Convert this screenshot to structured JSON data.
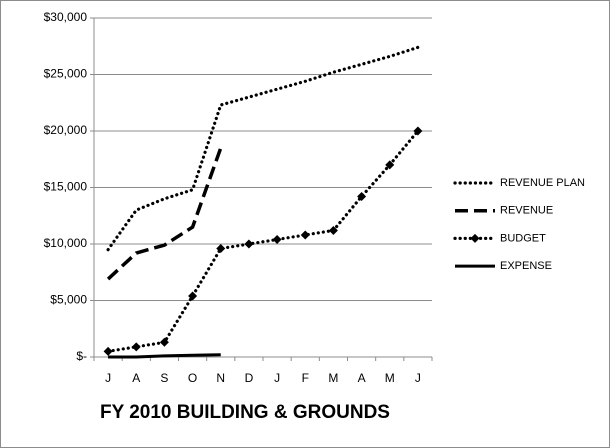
{
  "chart_data": {
    "type": "line",
    "title": "FY 2010 BUILDING & GROUNDS",
    "categories": [
      "J",
      "A",
      "S",
      "O",
      "N",
      "D",
      "J",
      "F",
      "M",
      "A",
      "M",
      "J"
    ],
    "series": [
      {
        "name": "REVENUE PLAN",
        "color": "#000000",
        "line_style": "dotted",
        "marker": "none",
        "values": [
          9500,
          13000,
          14000,
          14800,
          22300,
          23000,
          23700,
          24400,
          25200,
          25900,
          26600,
          27400
        ]
      },
      {
        "name": "REVENUE",
        "color": "#000000",
        "line_style": "dashed",
        "marker": "none",
        "values": [
          6900,
          9200,
          9900,
          11500,
          18500,
          null,
          null,
          null,
          null,
          null,
          null,
          null
        ]
      },
      {
        "name": "BUDGET",
        "color": "#000000",
        "line_style": "dotted",
        "marker": "diamond",
        "values": [
          500,
          900,
          1300,
          5400,
          9600,
          10000,
          10400,
          10800,
          11200,
          14200,
          17000,
          20000
        ]
      },
      {
        "name": "EXPENSE",
        "color": "#000000",
        "line_style": "solid",
        "marker": "none",
        "values": [
          0,
          0,
          100,
          150,
          200,
          null,
          null,
          null,
          null,
          null,
          null,
          null
        ]
      }
    ],
    "ylim": [
      0,
      30000
    ],
    "yticks": [
      {
        "value": 0,
        "label": "$-"
      },
      {
        "value": 5000,
        "label": "$5,000"
      },
      {
        "value": 10000,
        "label": "$10,000"
      },
      {
        "value": 15000,
        "label": "$15,000"
      },
      {
        "value": 20000,
        "label": "$20,000"
      },
      {
        "value": 25000,
        "label": "$25,000"
      },
      {
        "value": 30000,
        "label": "$30,000"
      }
    ],
    "grid": true,
    "legend": "right"
  }
}
